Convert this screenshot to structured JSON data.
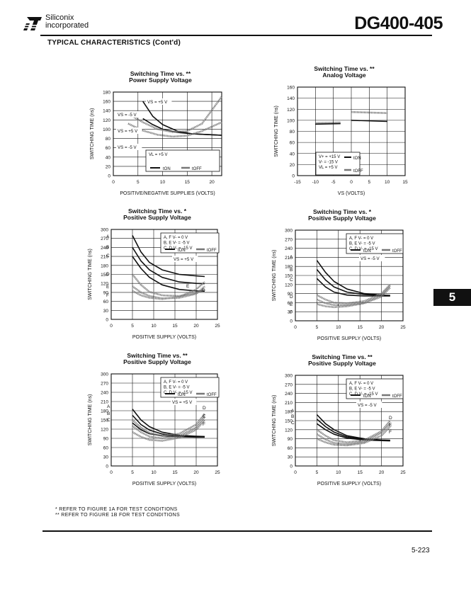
{
  "header": {
    "brand_line1": "Siliconix",
    "brand_line2": "incorporated",
    "part_number": "DG400-405",
    "section_title": "TYPICAL CHARACTERISTICS (Cont'd)"
  },
  "side_tab": "5",
  "footnotes": [
    "*  REFER TO FIGURE 1A FOR TEST CONDITIONS",
    "** REFER TO FIGURE 1B FOR TEST CONDITIONS"
  ],
  "page_number": "5-223",
  "colors": {
    "ink": "#111111",
    "ton_line": "#111111",
    "toff_line": "#777777"
  },
  "chart_data": [
    {
      "type": "line",
      "title": [
        "Switching Time  vs.  **",
        "Power Supply Voltage"
      ],
      "xlabel": "POSITIVE/NEGATIVE SUPPLIES (VOLTS)",
      "ylabel": "SWITCHING TIME  (ns)",
      "xlim": [
        0,
        22
      ],
      "ylim": [
        0,
        180
      ],
      "xticks": [
        0,
        5,
        10,
        15,
        20
      ],
      "yticks": [
        0,
        20,
        40,
        60,
        80,
        100,
        120,
        140,
        160,
        180
      ],
      "legend": {
        "lines": [
          "VL = +5 V"
        ],
        "ton": "tON",
        "toff": "tOFF"
      },
      "annotations": [
        "VS = +5 V",
        "VS = -5 V",
        "VS = +5 V",
        "VS = -5 V"
      ],
      "series": [
        {
          "kind": "ton",
          "x": [
            6,
            8,
            10,
            13,
            16,
            20,
            22
          ],
          "y": [
            160,
            128,
            110,
            96,
            90,
            88,
            87
          ]
        },
        {
          "kind": "ton",
          "x": [
            6,
            8,
            10,
            13,
            16,
            20,
            22
          ],
          "y": [
            123,
            110,
            100,
            93,
            90,
            88,
            87
          ]
        },
        {
          "kind": "toff",
          "x": [
            3,
            6,
            9,
            12,
            15,
            18,
            22
          ],
          "y": [
            133,
            115,
            100,
            94,
            96,
            112,
            170
          ]
        },
        {
          "kind": "toff",
          "x": [
            3,
            6,
            9,
            12,
            15,
            18,
            22
          ],
          "y": [
            112,
            97,
            88,
            84,
            86,
            96,
            115
          ]
        }
      ]
    },
    {
      "type": "line",
      "title": [
        "Switching Time  vs.  **",
        "Analog Voltage"
      ],
      "xlabel": "VS    (VOLTS)",
      "ylabel": "SWITCHING TIME  (ns)",
      "xlim": [
        -15,
        15
      ],
      "ylim": [
        0,
        160
      ],
      "xticks": [
        -15,
        -10,
        -5,
        0,
        5,
        10,
        15
      ],
      "yticks": [
        0,
        20,
        40,
        60,
        80,
        100,
        120,
        140,
        160
      ],
      "legend": {
        "lines": [
          "V+ = +15 V",
          "V- = -15 V",
          "VL = +5 V"
        ],
        "ton": "tON",
        "toff": "tOFF"
      },
      "series": [
        {
          "kind": "toff",
          "x": [
            -10,
            -3
          ],
          "y": [
            95,
            96
          ]
        },
        {
          "kind": "ton",
          "x": [
            -10,
            -3
          ],
          "y": [
            93,
            94
          ]
        },
        {
          "kind": "toff",
          "x": [
            0,
            10
          ],
          "y": [
            115,
            113
          ]
        },
        {
          "kind": "ton",
          "x": [
            0,
            10
          ],
          "y": [
            100,
            98
          ]
        }
      ]
    },
    {
      "type": "line",
      "title": [
        "Switching Time  vs.  *",
        "Positive Supply Voltage"
      ],
      "xlabel": "POSITIVE  SUPPLY (VOLTS)",
      "ylabel": "SWITCHING TIME  (ns)",
      "xlim": [
        0,
        25
      ],
      "ylim": [
        0,
        300
      ],
      "xticks": [
        0,
        5,
        10,
        15,
        20,
        25
      ],
      "yticks": [
        0,
        30,
        60,
        90,
        120,
        150,
        180,
        210,
        240,
        270,
        300
      ],
      "legend": {
        "lines": [
          "A, F   V- =  0 V",
          "B, E   V- = -5 V",
          "C, D   V- = -15 V"
        ],
        "ton": "tON",
        "toff": "tOFF"
      },
      "annotations": [
        "VS = +5 V"
      ],
      "curve_labels": [
        "A",
        "B",
        "C",
        "D",
        "E",
        "F",
        "E",
        "D"
      ],
      "series": [
        {
          "kind": "ton",
          "label": "A",
          "x": [
            5,
            7,
            9,
            12,
            16,
            20,
            22
          ],
          "y": [
            280,
            225,
            190,
            165,
            150,
            145,
            143
          ]
        },
        {
          "kind": "ton",
          "label": "B",
          "x": [
            5,
            7,
            9,
            12,
            16,
            20,
            22
          ],
          "y": [
            240,
            195,
            165,
            140,
            125,
            120,
            119
          ]
        },
        {
          "kind": "ton",
          "label": "C",
          "x": [
            5,
            7,
            9,
            12,
            16,
            20,
            22
          ],
          "y": [
            210,
            170,
            140,
            115,
            100,
            95,
            94
          ]
        },
        {
          "kind": "toff",
          "label": "D",
          "x": [
            5,
            7,
            9,
            12,
            16,
            20,
            22
          ],
          "y": [
            150,
            115,
            92,
            80,
            78,
            88,
            100
          ]
        },
        {
          "kind": "toff",
          "label": "E",
          "x": [
            5,
            7,
            9,
            12,
            16,
            20,
            22
          ],
          "y": [
            110,
            90,
            78,
            70,
            72,
            85,
            110
          ]
        },
        {
          "kind": "toff",
          "label": "F",
          "x": [
            5,
            7,
            9,
            12,
            16,
            20,
            22
          ],
          "y": [
            95,
            80,
            72,
            68,
            75,
            100,
            125
          ]
        }
      ]
    },
    {
      "type": "line",
      "title": [
        "Switching Time  vs.  *",
        "Positive Supply Voltage"
      ],
      "xlabel": "POSITIVE  SUPPLY (VOLTS)",
      "ylabel": "SWITCHING TIME  (ns)",
      "xlim": [
        0,
        25
      ],
      "ylim": [
        0,
        300
      ],
      "xticks": [
        0,
        5,
        10,
        15,
        20,
        25
      ],
      "yticks": [
        0,
        30,
        60,
        90,
        120,
        150,
        180,
        210,
        240,
        270,
        300
      ],
      "legend": {
        "lines": [
          "A, F   V- =  0 V",
          "B, E   V- = -5 V",
          "C, D   V- = -15 V"
        ],
        "ton": "tON",
        "toff": "tOFF"
      },
      "annotations": [
        "VS = -5 V"
      ],
      "curve_labels": [
        "A",
        "B",
        "C",
        "D",
        "E",
        "F"
      ],
      "series": [
        {
          "kind": "ton",
          "label": "A",
          "x": [
            5,
            7,
            9,
            12,
            16,
            20,
            22
          ],
          "y": [
            200,
            160,
            130,
            105,
            90,
            85,
            84
          ]
        },
        {
          "kind": "ton",
          "label": "B",
          "x": [
            5,
            7,
            9,
            12,
            16,
            20,
            22
          ],
          "y": [
            170,
            135,
            112,
            95,
            87,
            84,
            83
          ]
        },
        {
          "kind": "ton",
          "label": "C",
          "x": [
            5,
            7,
            9,
            12,
            16,
            20,
            22
          ],
          "y": [
            140,
            112,
            95,
            85,
            82,
            82,
            82
          ]
        },
        {
          "kind": "toff",
          "label": "D",
          "x": [
            5,
            7,
            9,
            12,
            16,
            20,
            22
          ],
          "y": [
            85,
            70,
            60,
            58,
            65,
            90,
            120
          ]
        },
        {
          "kind": "toff",
          "label": "E",
          "x": [
            5,
            7,
            9,
            12,
            16,
            20,
            22
          ],
          "y": [
            70,
            58,
            52,
            52,
            60,
            85,
            115
          ]
        },
        {
          "kind": "toff",
          "label": "F",
          "x": [
            5,
            7,
            9,
            12,
            16,
            20,
            22
          ],
          "y": [
            55,
            48,
            45,
            48,
            58,
            80,
            110
          ]
        }
      ]
    },
    {
      "type": "line",
      "title": [
        "Switching Time  vs.  **",
        "Positive Supply Voltage"
      ],
      "xlabel": "POSITIVE  SUPPLY (VOLTS)",
      "ylabel": "SWITCHING TIME  (ns)",
      "xlim": [
        0,
        25
      ],
      "ylim": [
        0,
        300
      ],
      "xticks": [
        0,
        5,
        10,
        15,
        20,
        25
      ],
      "yticks": [
        0,
        30,
        60,
        90,
        120,
        150,
        180,
        210,
        240,
        270,
        300
      ],
      "legend": {
        "lines": [
          "A, F   V- =  0 V",
          "B, E   V- = -5 V",
          "C, D   V- = -15 V"
        ],
        "ton": "tON",
        "toff": "tOFF"
      },
      "annotations": [
        "VS = +5 V"
      ],
      "curve_labels": [
        "A",
        "B",
        "C",
        "D",
        "E",
        "F"
      ],
      "series": [
        {
          "kind": "ton",
          "label": "A",
          "x": [
            5,
            7,
            9,
            12,
            16,
            20,
            22
          ],
          "y": [
            185,
            150,
            128,
            110,
            100,
            97,
            96
          ]
        },
        {
          "kind": "ton",
          "label": "B",
          "x": [
            5,
            7,
            9,
            12,
            16,
            20,
            22
          ],
          "y": [
            165,
            135,
            117,
            104,
            97,
            95,
            95
          ]
        },
        {
          "kind": "ton",
          "label": "C",
          "x": [
            5,
            7,
            9,
            12,
            16,
            20,
            22
          ],
          "y": [
            140,
            118,
            105,
            98,
            95,
            94,
            94
          ]
        },
        {
          "kind": "toff",
          "label": "D",
          "x": [
            5,
            7,
            9,
            12,
            16,
            20,
            22
          ],
          "y": [
            150,
            125,
            108,
            98,
            105,
            135,
            170
          ]
        },
        {
          "kind": "toff",
          "label": "E",
          "x": [
            5,
            7,
            9,
            12,
            16,
            20,
            22
          ],
          "y": [
            130,
            110,
            96,
            90,
            98,
            125,
            160
          ]
        },
        {
          "kind": "toff",
          "label": "F",
          "x": [
            5,
            7,
            9,
            12,
            16,
            20,
            22
          ],
          "y": [
            110,
            95,
            85,
            82,
            92,
            118,
            150
          ]
        }
      ]
    },
    {
      "type": "line",
      "title": [
        "Switching Time  vs.  **",
        "Positive Supply Voltage"
      ],
      "xlabel": "POSITIVE  SUPPLY (VOLTS)",
      "ylabel": "SWITCHING TIME  (ns)",
      "xlim": [
        0,
        25
      ],
      "ylim": [
        0,
        300
      ],
      "xticks": [
        0,
        5,
        10,
        15,
        20,
        25
      ],
      "yticks": [
        0,
        30,
        60,
        90,
        120,
        150,
        180,
        210,
        240,
        270,
        300
      ],
      "legend": {
        "lines": [
          "A, F   V- =  0 V",
          "B, E   V- = -5 V",
          "C, D   V- = -15 V"
        ],
        "ton": "tON",
        "toff": "tOFF"
      },
      "annotations": [
        "VS = -5 V"
      ],
      "curve_labels": [
        "A",
        "B",
        "C",
        "D",
        "E",
        "F"
      ],
      "series": [
        {
          "kind": "ton",
          "label": "A",
          "x": [
            5,
            7,
            9,
            12,
            16,
            20,
            22
          ],
          "y": [
            170,
            140,
            120,
            100,
            90,
            86,
            85
          ]
        },
        {
          "kind": "ton",
          "label": "B",
          "x": [
            5,
            7,
            9,
            12,
            16,
            20,
            22
          ],
          "y": [
            155,
            130,
            112,
            96,
            88,
            85,
            84
          ]
        },
        {
          "kind": "ton",
          "label": "C",
          "x": [
            5,
            7,
            9,
            12,
            16,
            20,
            22
          ],
          "y": [
            140,
            120,
            105,
            92,
            86,
            84,
            83
          ]
        },
        {
          "kind": "toff",
          "label": "D",
          "x": [
            5,
            7,
            9,
            12,
            16,
            20,
            22
          ],
          "y": [
            120,
            100,
            85,
            78,
            85,
            115,
            150
          ]
        },
        {
          "kind": "toff",
          "label": "E",
          "x": [
            5,
            7,
            9,
            12,
            16,
            20,
            22
          ],
          "y": [
            105,
            88,
            76,
            72,
            80,
            110,
            140
          ]
        },
        {
          "kind": "toff",
          "label": "F",
          "x": [
            5,
            7,
            9,
            12,
            16,
            20,
            22
          ],
          "y": [
            90,
            78,
            70,
            68,
            76,
            100,
            130
          ]
        }
      ]
    }
  ]
}
